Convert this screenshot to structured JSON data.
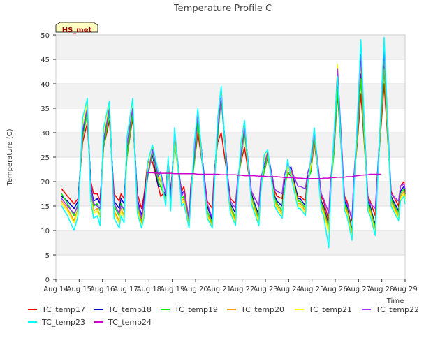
{
  "chart_data": {
    "type": "line",
    "title": "Temperature Profile C",
    "xlabel": "Time",
    "ylabel": "Temperature (C)",
    "annotation": "HS_met",
    "xlim": [
      0,
      15
    ],
    "ylim": [
      0,
      50
    ],
    "x_ticks": [
      0,
      1,
      2,
      3,
      4,
      5,
      6,
      7,
      8,
      9,
      10,
      11,
      12,
      13,
      14,
      15
    ],
    "x_tick_labels": [
      "Aug 14",
      "Aug 15",
      "Aug 16",
      "Aug 17",
      "Aug 18",
      "Aug 19",
      "Aug 20",
      "Aug 21",
      "Aug 22",
      "Aug 23",
      "Aug 24",
      "Aug 25",
      "Aug 26",
      "Aug 27",
      "Aug 28",
      "Aug 29"
    ],
    "y_ticks": [
      0,
      5,
      10,
      15,
      20,
      25,
      30,
      35,
      40,
      45,
      50
    ],
    "y_tick_labels": [
      "0",
      "5",
      "10",
      "15",
      "20",
      "25",
      "30",
      "35",
      "40",
      "45",
      "50"
    ],
    "grid": true,
    "banded_background": true,
    "legend_position": "bottom",
    "daily_cycle": {
      "x_values": [
        0.25,
        0.5,
        0.78,
        0.95,
        1.15,
        1.35,
        1.5,
        1.62,
        1.78,
        1.9,
        2.05,
        2.3,
        2.5,
        2.72,
        2.8,
        2.93,
        3.05,
        3.3,
        3.5,
        3.68,
        3.78,
        3.95,
        4.15,
        4.4,
        4.5,
        4.72,
        4.82,
        4.93,
        5.1,
        5.4,
        5.5,
        5.72,
        5.8,
        5.95,
        6.1,
        6.4,
        6.5,
        6.72,
        6.8,
        6.95,
        7.1,
        7.4,
        7.5,
        7.72,
        7.8,
        7.95,
        8.1,
        8.4,
        8.5,
        8.72,
        8.8,
        8.95,
        9.1,
        9.4,
        9.5,
        9.72,
        9.8,
        9.95,
        10.1,
        10.4,
        10.5,
        10.72,
        10.8,
        10.95,
        11.1,
        11.4,
        11.5,
        11.72,
        11.8,
        11.95,
        12.1,
        12.4,
        12.5,
        12.72,
        12.8,
        12.95,
        13.1,
        13.4,
        13.5,
        13.72,
        13.8,
        13.95,
        14.1,
        14.4,
        14.5,
        14.72,
        14.8,
        14.95,
        15.0
      ]
    },
    "series": [
      {
        "name": "TC_temp17",
        "color": "#ff0000",
        "values": [
          18.5,
          17.0,
          15.5,
          16.5,
          28.0,
          32.0,
          20.0,
          17.5,
          17.5,
          16.0,
          27.0,
          32.5,
          17.5,
          16.0,
          17.5,
          16.5,
          25.0,
          33.0,
          17.5,
          14.5,
          17.0,
          24.0,
          24.0,
          19.0,
          17.0,
          18.0,
          24.5,
          18.0,
          28.0,
          18.0,
          19.0,
          12.0,
          19.5,
          24.0,
          30.0,
          20.0,
          16.0,
          14.5,
          22.0,
          28.0,
          30.0,
          20.0,
          16.5,
          15.5,
          20.0,
          24.0,
          27.0,
          18.0,
          17.0,
          15.0,
          20.0,
          22.0,
          25.0,
          18.0,
          17.0,
          16.5,
          20.0,
          22.0,
          21.0,
          17.0,
          17.0,
          16.0,
          21.0,
          22.0,
          28.0,
          17.0,
          16.0,
          12.0,
          20.0,
          26.0,
          38.0,
          17.0,
          16.0,
          12.0,
          21.0,
          28.0,
          38.0,
          17.0,
          16.0,
          13.0,
          21.0,
          30.0,
          40.0,
          18.0,
          17.0,
          15.0,
          19.0,
          20.0,
          18.0
        ]
      },
      {
        "name": "TC_temp18",
        "color": "#0000cc",
        "values": [
          17.0,
          16.0,
          14.5,
          16.0,
          30.0,
          35.0,
          19.0,
          16.0,
          16.5,
          15.5,
          28.0,
          35.0,
          16.0,
          14.5,
          16.5,
          15.5,
          26.0,
          35.0,
          16.5,
          13.0,
          16.0,
          22.5,
          25.5,
          19.0,
          19.0,
          17.0,
          24.0,
          17.0,
          29.0,
          17.5,
          18.0,
          11.0,
          18.5,
          25.0,
          33.0,
          20.0,
          15.0,
          12.0,
          21.0,
          30.0,
          38.0,
          20.0,
          15.5,
          13.5,
          19.5,
          25.0,
          31.0,
          17.5,
          16.0,
          13.0,
          19.5,
          23.0,
          26.0,
          17.0,
          16.0,
          15.0,
          19.0,
          22.5,
          23.0,
          16.5,
          16.5,
          15.0,
          20.5,
          22.0,
          30.0,
          16.0,
          15.0,
          11.0,
          19.0,
          27.0,
          40.0,
          16.0,
          15.0,
          10.0,
          20.0,
          30.0,
          42.0,
          16.0,
          15.0,
          11.0,
          20.0,
          32.0,
          44.0,
          17.0,
          16.0,
          14.0,
          18.0,
          19.0,
          17.5
        ]
      },
      {
        "name": "TC_temp19",
        "color": "#00ee00",
        "values": [
          17.5,
          15.5,
          13.0,
          15.5,
          29.0,
          34.0,
          18.0,
          15.0,
          15.5,
          14.0,
          27.0,
          34.0,
          15.0,
          13.0,
          15.5,
          14.0,
          25.0,
          34.0,
          15.5,
          12.0,
          15.0,
          21.0,
          26.0,
          20.0,
          19.0,
          16.5,
          23.0,
          16.0,
          28.0,
          16.5,
          17.0,
          11.5,
          17.5,
          24.0,
          32.0,
          19.0,
          14.0,
          11.5,
          20.0,
          29.0,
          37.0,
          19.0,
          15.0,
          12.5,
          19.0,
          24.5,
          30.0,
          17.0,
          15.5,
          12.5,
          19.0,
          22.0,
          25.5,
          16.5,
          15.5,
          14.0,
          18.5,
          21.5,
          22.0,
          16.0,
          16.0,
          14.5,
          20.0,
          22.0,
          29.0,
          15.5,
          14.5,
          10.5,
          18.5,
          26.0,
          39.0,
          15.5,
          14.5,
          9.5,
          19.5,
          29.0,
          41.0,
          15.5,
          14.5,
          10.5,
          19.5,
          31.0,
          43.0,
          16.5,
          15.5,
          13.5,
          17.5,
          18.5,
          17.0
        ]
      },
      {
        "name": "TC_temp20",
        "color": "#ff9900",
        "values": [
          16.0,
          14.5,
          12.0,
          14.5,
          31.0,
          35.5,
          17.0,
          14.0,
          14.5,
          13.0,
          29.0,
          35.5,
          14.0,
          12.0,
          14.5,
          13.0,
          27.0,
          35.5,
          14.5,
          11.5,
          14.0,
          22.0,
          26.5,
          21.0,
          20.0,
          16.0,
          24.0,
          15.0,
          29.0,
          16.0,
          16.5,
          11.0,
          17.0,
          26.0,
          34.0,
          18.5,
          13.5,
          11.0,
          19.5,
          31.0,
          38.0,
          18.5,
          14.5,
          12.0,
          18.5,
          26.0,
          31.0,
          16.5,
          15.0,
          12.0,
          18.5,
          23.5,
          26.0,
          16.0,
          15.0,
          13.5,
          18.0,
          22.5,
          22.0,
          15.5,
          15.5,
          14.0,
          19.5,
          23.0,
          30.0,
          15.0,
          14.0,
          10.0,
          18.0,
          28.0,
          43.0,
          15.0,
          14.0,
          9.0,
          19.0,
          31.0,
          45.0,
          15.0,
          14.0,
          10.0,
          19.0,
          33.0,
          46.0,
          16.0,
          15.0,
          13.0,
          17.0,
          18.0,
          16.5
        ]
      },
      {
        "name": "TC_temp21",
        "color": "#ffff00",
        "values": [
          15.5,
          14.0,
          11.5,
          14.0,
          31.5,
          36.0,
          16.5,
          13.5,
          14.0,
          12.5,
          29.5,
          36.0,
          13.5,
          11.5,
          14.0,
          12.5,
          27.5,
          36.0,
          14.0,
          11.0,
          13.5,
          22.5,
          27.0,
          21.5,
          20.5,
          15.5,
          24.5,
          14.5,
          29.5,
          15.5,
          16.0,
          10.5,
          16.5,
          26.5,
          34.5,
          18.0,
          13.0,
          10.5,
          19.0,
          31.5,
          38.5,
          18.0,
          14.0,
          11.5,
          18.0,
          26.5,
          31.5,
          16.0,
          14.5,
          11.5,
          18.0,
          24.0,
          26.5,
          15.5,
          14.5,
          13.0,
          17.5,
          23.0,
          21.5,
          15.0,
          15.0,
          13.5,
          19.0,
          23.5,
          30.5,
          14.5,
          13.5,
          9.5,
          17.5,
          28.5,
          44.0,
          14.5,
          13.5,
          8.5,
          18.5,
          31.5,
          46.0,
          14.5,
          13.5,
          9.5,
          18.5,
          33.5,
          47.0,
          15.5,
          14.5,
          12.5,
          16.5,
          17.5,
          16.0
        ]
      },
      {
        "name": "TC_temp22",
        "color": "#9933ff",
        "values": [
          16.5,
          15.0,
          13.5,
          15.0,
          30.5,
          35.0,
          18.5,
          15.5,
          15.0,
          14.5,
          28.5,
          35.0,
          15.5,
          13.5,
          15.0,
          14.5,
          27.5,
          35.0,
          16.0,
          12.5,
          15.5,
          21.5,
          26.5,
          21.0,
          22.0,
          17.5,
          24.0,
          16.5,
          30.0,
          17.0,
          18.0,
          12.5,
          18.0,
          25.5,
          34.0,
          19.5,
          15.5,
          12.5,
          20.5,
          30.5,
          37.5,
          19.5,
          16.0,
          14.5,
          20.0,
          25.5,
          31.0,
          18.0,
          17.0,
          15.0,
          20.5,
          23.5,
          26.0,
          18.5,
          18.0,
          17.5,
          21.0,
          23.5,
          22.5,
          19.0,
          19.0,
          18.5,
          21.5,
          24.0,
          30.0,
          17.5,
          16.5,
          13.5,
          20.0,
          28.0,
          43.0,
          16.5,
          15.5,
          12.5,
          21.0,
          31.0,
          46.0,
          16.5,
          15.5,
          14.5,
          20.5,
          33.0,
          47.0,
          17.5,
          17.0,
          16.0,
          19.0,
          19.5,
          18.5
        ]
      },
      {
        "name": "TC_temp23",
        "color": "#00ffff",
        "values": [
          15.0,
          13.0,
          10.0,
          13.0,
          33.0,
          37.0,
          16.0,
          12.5,
          13.0,
          11.0,
          31.0,
          36.5,
          12.5,
          10.5,
          13.0,
          11.5,
          29.0,
          37.0,
          13.5,
          10.5,
          12.5,
          24.0,
          27.5,
          22.0,
          21.5,
          15.0,
          25.0,
          14.0,
          31.0,
          15.0,
          15.5,
          10.5,
          16.0,
          28.0,
          35.0,
          17.5,
          12.5,
          10.5,
          18.5,
          33.0,
          39.5,
          17.5,
          13.5,
          11.0,
          17.5,
          28.0,
          32.5,
          15.5,
          14.0,
          11.0,
          17.5,
          25.5,
          26.5,
          15.0,
          14.0,
          12.5,
          17.0,
          24.5,
          21.0,
          14.5,
          14.5,
          13.0,
          18.5,
          25.0,
          31.0,
          14.0,
          13.0,
          6.5,
          17.0,
          30.0,
          41.5,
          14.0,
          13.0,
          8.0,
          18.0,
          33.0,
          49.0,
          14.0,
          13.0,
          9.0,
          18.0,
          34.0,
          49.5,
          15.0,
          14.0,
          12.0,
          16.0,
          17.0,
          15.5
        ]
      },
      {
        "name": "TC_temp24",
        "color": "#cc00cc",
        "values": [
          null,
          null,
          null,
          null,
          null,
          null,
          null,
          null,
          null,
          null,
          null,
          null,
          null,
          null,
          null,
          null,
          null,
          null,
          null,
          null,
          null,
          21.8,
          21.8,
          21.7,
          21.7,
          21.7,
          21.7,
          21.7,
          21.6,
          21.6,
          21.6,
          21.6,
          21.6,
          21.6,
          21.5,
          21.5,
          21.5,
          21.5,
          21.5,
          21.5,
          21.4,
          21.4,
          21.4,
          21.4,
          21.3,
          21.3,
          21.2,
          21.2,
          21.2,
          21.1,
          21.1,
          21.1,
          21.0,
          21.0,
          21.0,
          20.9,
          20.8,
          20.8,
          20.8,
          20.7,
          20.7,
          20.6,
          20.6,
          20.6,
          20.6,
          20.6,
          20.7,
          20.7,
          20.8,
          20.8,
          20.9,
          20.9,
          21.0,
          21.0,
          21.1,
          21.2,
          21.3,
          21.4,
          21.5,
          21.5,
          21.5,
          21.5,
          null,
          null,
          null,
          null,
          null,
          null,
          null
        ]
      }
    ]
  }
}
